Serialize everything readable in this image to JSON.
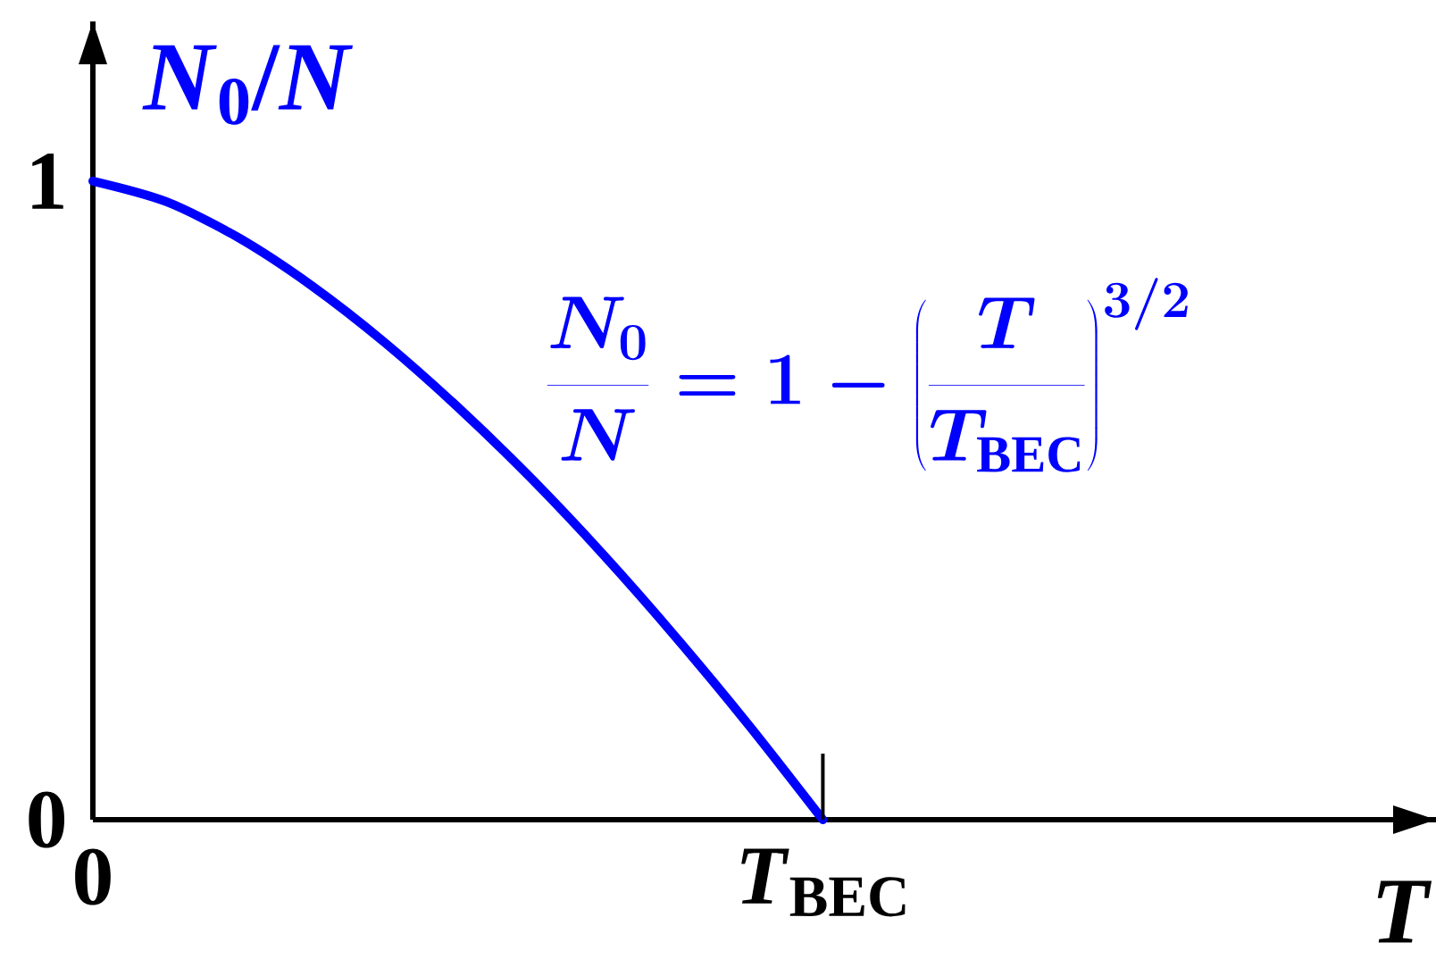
{
  "chart_data": {
    "type": "line",
    "xlabel": "T",
    "ylabel": "*N*$_{0}$/*N*",
    "categories": [
      "0",
      null,
      null,
      null,
      null,
      null,
      null,
      null,
      null,
      null,
      "*T*$_{BEC}$",
      null,
      null,
      null,
      null,
      null,
      null,
      null,
      null
    ],
    "values": [
      1,
      0.968,
      0.911,
      0.836,
      0.747,
      0.646,
      0.535,
      0.414,
      0.284,
      0.146,
      0,
      null,
      null,
      null,
      null,
      null,
      null,
      null,
      null
    ],
    "color": "#0000ff",
    "ylim": [
      0,
      1.25
    ],
    "yticks": [
      0,
      1
    ],
    "annotations": [
      "\\frac{N_0}{N}=1-\\left(\\frac{T}{T_{\\mathrm{BEC}}}\\right)^{3/2}"
    ]
  }
}
